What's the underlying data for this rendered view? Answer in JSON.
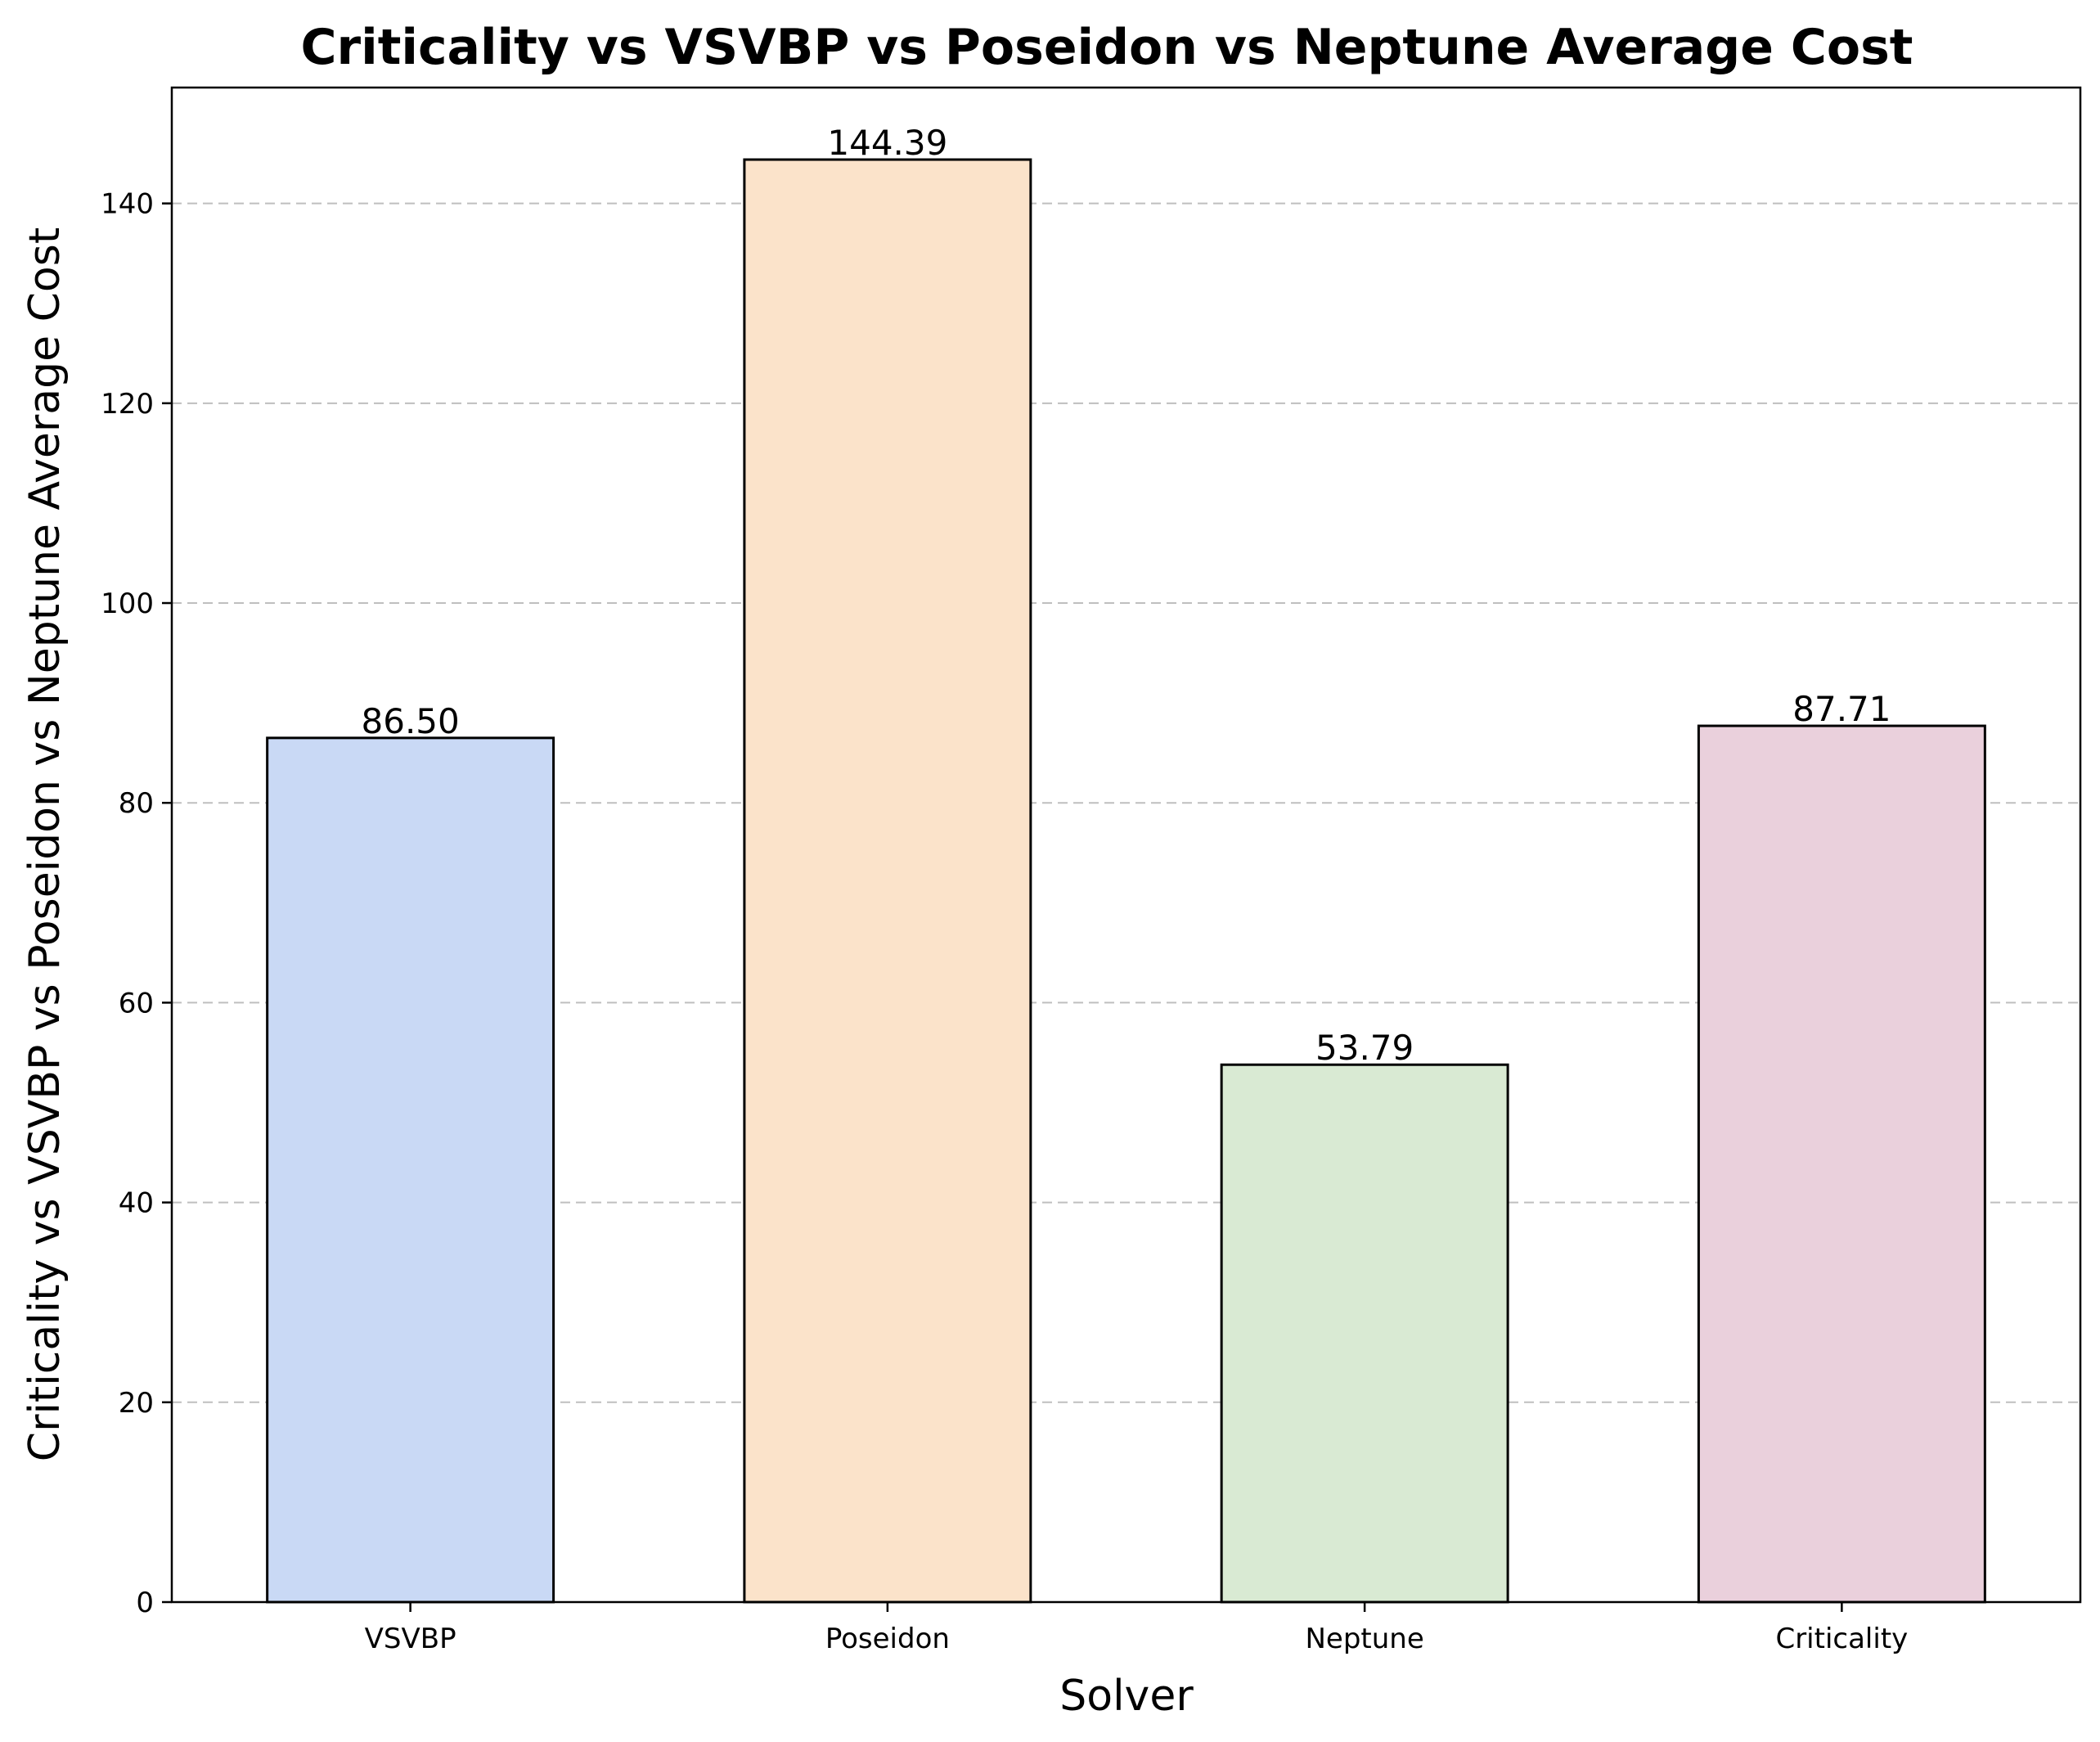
{
  "chart_data": {
    "type": "bar",
    "title": "Criticality vs VSVBP vs Poseidon vs Neptune Average Cost",
    "xlabel": "Solver",
    "ylabel": "Criticality vs VSVBP vs Poseidon vs Neptune Average Cost",
    "categories": [
      "VSVBP",
      "Poseidon",
      "Neptune",
      "Criticality"
    ],
    "values": [
      86.5,
      144.39,
      53.79,
      87.71
    ],
    "value_labels": [
      "86.50",
      "144.39",
      "53.79",
      "87.71"
    ],
    "colors": [
      "#c9d9f5",
      "#fbe3ca",
      "#d9ead3",
      "#ead0dc"
    ],
    "edge_color": "#000000",
    "ylim": [
      0,
      151.6
    ],
    "yticks": [
      0,
      20,
      40,
      60,
      80,
      100,
      120,
      140
    ],
    "grid": "y-dashed",
    "legend": "none"
  }
}
